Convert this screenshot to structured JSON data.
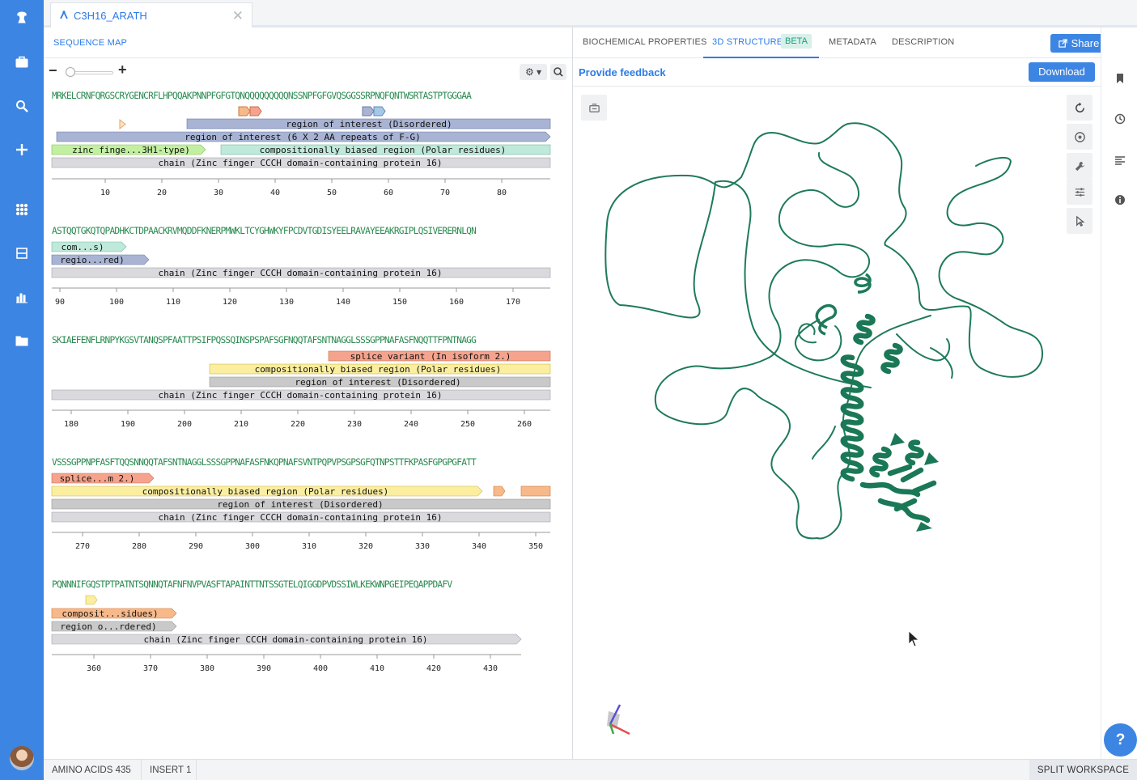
{
  "tab": {
    "title": "C3H16_ARATH"
  },
  "left_panel": {
    "header": "SEQUENCE MAP"
  },
  "rows": [
    {
      "sequence": "MRKELCRNFQRGSCRYGENCRFLHPQQAKPNNPFGFGTQNQQQQQQQQQNSSNPFGFGVQSGGSSRPNQFQNTWSRTASTPTGGGAA",
      "annotations": [
        "region of interest (Disordered)",
        "region of interest (6 X 2 AA repeats of F-G)",
        "zinc finge...3H1-type)",
        "compositionally biased region (Polar residues)",
        "chain (Zinc finger CCCH domain-containing protein 16)"
      ],
      "ticks": [
        "10",
        "20",
        "30",
        "40",
        "50",
        "60",
        "70",
        "80"
      ]
    },
    {
      "sequence": "ASTQQTGKQTQPADHKCTDPAACKRVMQDDFKNERPMWKLTCYGHWKYFPCDVTGDISYEELRAVAYEEAKRGIPLQSIVERERNLQN",
      "annotations": [
        "com...s)",
        "regio...red)",
        "chain (Zinc finger CCCH domain-containing protein 16)"
      ],
      "ticks": [
        "90",
        "100",
        "110",
        "120",
        "130",
        "140",
        "150",
        "160",
        "170"
      ]
    },
    {
      "sequence": "SKIAEFENFLRNPYKGSVTANQSPFAATTPSIFPQSSQINSPSPAFSGFNQQTAFSNTNAGGLSSSGPPNAFASFNQQTTFPNTNAGG",
      "annotations": [
        "splice variant (In isoform 2.)",
        "compositionally biased region (Polar residues)",
        "region of interest (Disordered)",
        "chain (Zinc finger CCCH domain-containing protein 16)"
      ],
      "ticks": [
        "180",
        "190",
        "200",
        "210",
        "220",
        "230",
        "240",
        "250",
        "260"
      ]
    },
    {
      "sequence": "VSSSGPPNPFASFTQQSNNQQTAFSNTNAGGLSSSGPPNAFASFNKQPNAFSVNTPQPVPSGPSGFQTNPSTTFKPASFGPGPGFATT",
      "annotations": [
        "splice...m 2.)",
        "compositionally biased region (Polar residues)",
        "region of interest (Disordered)",
        "chain (Zinc finger CCCH domain-containing protein 16)"
      ],
      "ticks": [
        "270",
        "280",
        "290",
        "300",
        "310",
        "320",
        "330",
        "340",
        "350"
      ]
    },
    {
      "sequence": "PQNNNIFGQSTPTPATNTSQNNQTAFNFNVPVASFTAPAINTTNTSSGTELQIGGDPVDSSIWLKEKWNPGEIPEQAPPDAFV",
      "annotations": [
        "composit...sidues)",
        "region o...rdered)",
        "chain (Zinc finger CCCH domain-containing protein 16)"
      ],
      "ticks": [
        "360",
        "370",
        "380",
        "390",
        "400",
        "410",
        "420",
        "430"
      ]
    }
  ],
  "right_panel": {
    "tabs": [
      {
        "label": "BIOCHEMICAL PROPERTIES"
      },
      {
        "label": "3D STRUCTURE"
      },
      {
        "label": "METADATA"
      },
      {
        "label": "DESCRIPTION"
      }
    ],
    "beta_badge": "BETA",
    "share_label": "Share",
    "feedback_label": "Provide feedback",
    "download_label": "Download"
  },
  "status": {
    "amino_label": "AMINO ACIDS",
    "amino_count": "435",
    "insert_label": "INSERT",
    "insert_value": "1",
    "split_label": "SPLIT WORKSPACE"
  },
  "colors": {
    "accent": "#3d85e3",
    "structure": "#1e7a5a",
    "chain": "#d9d9de",
    "region": "#a9b4d4",
    "zinc": "#c2f0a0",
    "biased_teal": "#bfe9da",
    "splice": "#f5a38c",
    "biased_yellow": "#fbee9f",
    "disordered_grey": "#c9c9c9",
    "orange": "#f8b98a"
  },
  "icons": [
    "logo-icon",
    "briefcase-icon",
    "search-icon",
    "plus-icon",
    "apps-icon",
    "table-icon",
    "chart-icon",
    "folder-icon",
    "bookmark-icon",
    "clock-icon",
    "align-icon",
    "info-icon"
  ]
}
